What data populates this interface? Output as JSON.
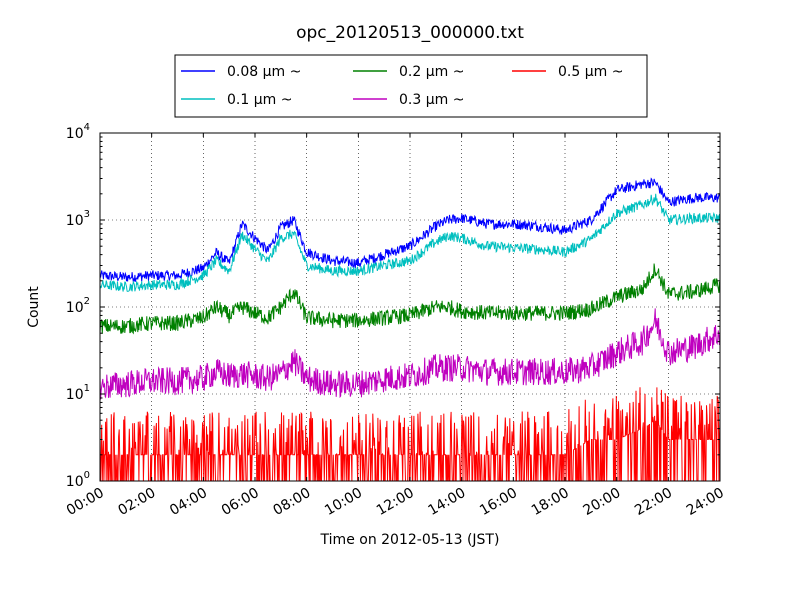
{
  "chart_data": {
    "type": "line",
    "title": "opc_20120513_000000.txt",
    "xlabel": "Time on 2012-05-13 (JST)",
    "ylabel": "Count",
    "yscale": "log",
    "ylim": [
      1,
      10000
    ],
    "xlim": [
      "00:00",
      "24:00"
    ],
    "grid": true,
    "legend_position": "top-outside",
    "x_ticks": [
      "00:00",
      "02:00",
      "04:00",
      "06:00",
      "08:00",
      "10:00",
      "12:00",
      "14:00",
      "16:00",
      "18:00",
      "20:00",
      "22:00",
      "24:00"
    ],
    "y_ticks": [
      {
        "value": 1,
        "base": "10",
        "exp": "0"
      },
      {
        "value": 10,
        "base": "10",
        "exp": "1"
      },
      {
        "value": 100,
        "base": "10",
        "exp": "2"
      },
      {
        "value": 1000,
        "base": "10",
        "exp": "3"
      },
      {
        "value": 10000,
        "base": "10",
        "exp": "4"
      }
    ],
    "x": [
      "00:00",
      "01:00",
      "02:00",
      "03:00",
      "04:00",
      "04:30",
      "05:00",
      "05:30",
      "06:00",
      "06:30",
      "07:00",
      "07:30",
      "08:00",
      "09:00",
      "10:00",
      "11:00",
      "12:00",
      "13:00",
      "13:30",
      "14:00",
      "15:00",
      "16:00",
      "17:00",
      "18:00",
      "19:00",
      "20:00",
      "21:00",
      "21:30",
      "22:00",
      "23:00",
      "24:00"
    ],
    "series": [
      {
        "name": "0.08 μm ~",
        "color": "#0000ff",
        "noise": 0.06,
        "values": [
          230,
          220,
          230,
          230,
          280,
          420,
          320,
          900,
          620,
          440,
          820,
          1000,
          430,
          340,
          320,
          400,
          500,
          850,
          1000,
          1050,
          900,
          900,
          850,
          760,
          1000,
          2200,
          2600,
          2700,
          1600,
          1800,
          1800
        ]
      },
      {
        "name": "0.1 μm ~",
        "color": "#00bfbf",
        "noise": 0.06,
        "values": [
          180,
          170,
          180,
          180,
          230,
          340,
          260,
          680,
          460,
          330,
          620,
          700,
          300,
          260,
          260,
          300,
          340,
          560,
          660,
          620,
          500,
          480,
          460,
          430,
          600,
          1200,
          1500,
          1800,
          1000,
          1050,
          1050
        ]
      },
      {
        "name": "0.2 μm ~",
        "color": "#008000",
        "noise": 0.09,
        "values": [
          60,
          60,
          65,
          65,
          75,
          100,
          80,
          100,
          85,
          75,
          100,
          150,
          75,
          70,
          70,
          75,
          80,
          100,
          100,
          90,
          85,
          85,
          85,
          85,
          95,
          130,
          160,
          280,
          140,
          150,
          180
        ]
      },
      {
        "name": "0.3 μm ~",
        "color": "#bf00bf",
        "noise": 0.16,
        "values": [
          12,
          13,
          14,
          14,
          15,
          18,
          16,
          17,
          16,
          15,
          17,
          24,
          15,
          13,
          13,
          15,
          16,
          20,
          20,
          20,
          18,
          18,
          18,
          18,
          20,
          30,
          40,
          70,
          30,
          35,
          50
        ]
      },
      {
        "name": "0.5 μm ~",
        "color": "#ff0000",
        "noise": 0.0,
        "values": [
          2,
          2,
          2,
          2,
          2,
          2,
          2,
          2,
          2,
          2,
          2,
          2,
          2,
          2,
          2,
          2,
          2,
          2,
          2,
          2,
          2,
          2,
          2,
          2,
          3,
          3,
          4,
          5,
          3,
          3,
          3
        ]
      }
    ]
  }
}
